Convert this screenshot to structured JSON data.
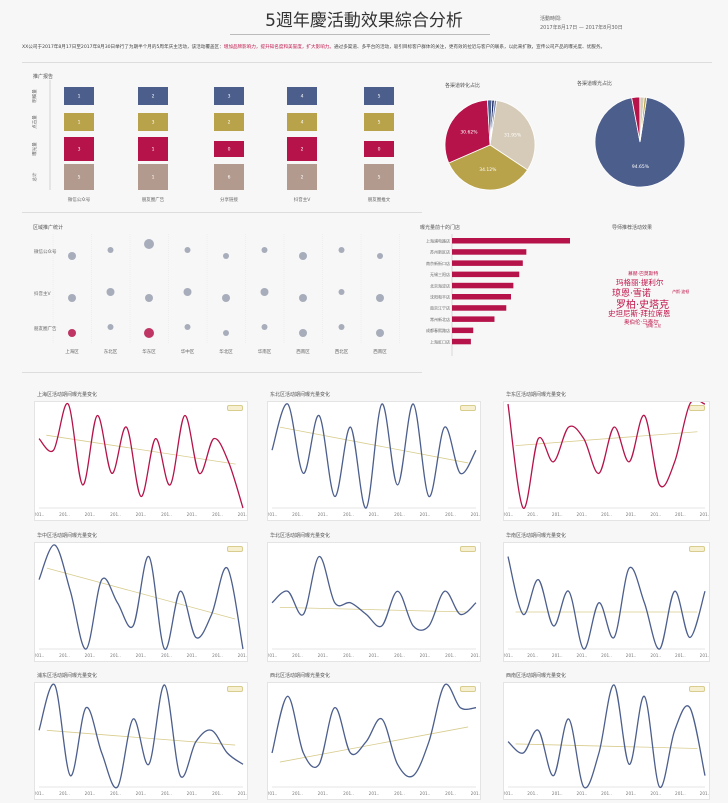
{
  "header": {
    "title": "5週年慶活動效果綜合分析",
    "time_label": "活動時間:",
    "time_range": "2017年8月17日 — 2017年8月30日",
    "intro_a": "XX公司于2017年8月17日至2017年8月30日举行了为期半个月的5周年庆主活动，该活动覆盖区：",
    "intro_hl": "增加品牌影响力，提升知名度和美誉度，扩大影响力。",
    "intro_b": "通过多渠道、多平台的活动，吸引目标客户群体的关注，更有效的拉近与客户的联系，以此来扩散，宣传公司产品的曝光度、优服务。"
  },
  "colors": {
    "blue": "#4c5e8c",
    "gold": "#b8a24a",
    "red": "#b5134a",
    "tan": "#b39a8e",
    "grey": "#9aa0b0",
    "trend": "#d8cc8e"
  },
  "promo": {
    "title": "推广报告",
    "rows": [
      "明细量",
      "点击量",
      "曝光量",
      "总计"
    ],
    "columns": [
      "微信公众号",
      "朋友圈广告",
      "分享链接",
      "抖音主V",
      "朋友圈推文"
    ],
    "chart_data": {
      "type": "bar",
      "categories": [
        "微信公众号",
        "朋友圈广告",
        "分享链接",
        "抖音主V",
        "朋友圈推文"
      ],
      "series": [
        {
          "name": "明细量",
          "values": [
            1,
            2,
            3,
            4,
            5
          ]
        },
        {
          "name": "点击量",
          "values": [
            1,
            3,
            2,
            4,
            5
          ]
        },
        {
          "name": "曝光量",
          "values": [
            3,
            1,
            0,
            2,
            0
          ]
        },
        {
          "name": "总计",
          "values": [
            5,
            1,
            6,
            2,
            5
          ]
        }
      ]
    }
  },
  "pie1": {
    "title": "各渠道转化占比",
    "chart_data": {
      "type": "pie",
      "labels": [
        "31.95%",
        "34.12%",
        "30.62%",
        "",
        "",
        ""
      ],
      "values": [
        31.95,
        34.12,
        30.62,
        1.6,
        0.9,
        0.81
      ]
    }
  },
  "pie2": {
    "title": "各渠道曝光占比",
    "chart_data": {
      "type": "pie",
      "labels": [
        "94.65%",
        "",
        "",
        ""
      ],
      "values": [
        94.65,
        2.9,
        1.6,
        0.85
      ]
    }
  },
  "region": {
    "title": "区域推广统计",
    "rows": [
      "微信公众号",
      "抖音主V",
      "朋友圈广告"
    ],
    "columns": [
      "上海区",
      "东北区",
      "华东区",
      "华中区",
      "华北区",
      "华南区",
      "西南区",
      "西北区",
      "西南区"
    ],
    "chart_data": {
      "type": "scatter",
      "points": [
        [
          0,
          0,
          3
        ],
        [
          1,
          0,
          2
        ],
        [
          2,
          0,
          4
        ],
        [
          3,
          0,
          2
        ],
        [
          4,
          0,
          2
        ],
        [
          5,
          0,
          2
        ],
        [
          6,
          0,
          3
        ],
        [
          7,
          0,
          2
        ],
        [
          8,
          0,
          2
        ],
        [
          0,
          1,
          3
        ],
        [
          1,
          1,
          3
        ],
        [
          2,
          1,
          3
        ],
        [
          3,
          1,
          3
        ],
        [
          4,
          1,
          3
        ],
        [
          5,
          1,
          3
        ],
        [
          6,
          1,
          3
        ],
        [
          7,
          1,
          2
        ],
        [
          8,
          1,
          3
        ],
        [
          0,
          2,
          3
        ],
        [
          1,
          2,
          2
        ],
        [
          2,
          2,
          4
        ],
        [
          3,
          2,
          2
        ],
        [
          4,
          2,
          2
        ],
        [
          5,
          2,
          2
        ],
        [
          6,
          2,
          3
        ],
        [
          7,
          2,
          2
        ],
        [
          8,
          2,
          3
        ]
      ],
      "highlight": [
        [
          0,
          2
        ],
        [
          2,
          2
        ]
      ]
    }
  },
  "stores": {
    "title": "曝光量前十的门店",
    "chart_data": {
      "type": "bar",
      "categories": [
        "上海浦电路店",
        "苏州新区店",
        "南京新街口店",
        "无锡三阳店",
        "北京海淀店",
        "沈阳和平店",
        "南京江宁店",
        "常州新北店",
        "成都春熙路店",
        "上海虹口店"
      ],
      "values": [
        100,
        63,
        60,
        57,
        52,
        50,
        46,
        36,
        18,
        16
      ]
    }
  },
  "cloud": {
    "title": "导师推荐活动效果",
    "words": [
      "慕赫·巴莫斯特",
      "玛格丽·提利尔",
      "琼恩·雪诺",
      "卢斯·波顿",
      "罗柏·史塔克",
      "史坦尼斯·拜拉席恩",
      "奥伯伦·马泰尔",
      "瑟曦·兰尼"
    ]
  },
  "trend_x": [
    "201..",
    "201..",
    "201..",
    "201..",
    "201..",
    "201..",
    "201..",
    "201..",
    "201.."
  ],
  "trends": [
    {
      "title": "上海区活动期间曝光量变化",
      "color": "red",
      "values": [
        6,
        5,
        9,
        2,
        8,
        3,
        7,
        1,
        6,
        2,
        8,
        3,
        6,
        4,
        0
      ],
      "trend": [
        6.3,
        3.8
      ]
    },
    {
      "title": "东北区活动期间曝光量变化",
      "color": "blue",
      "values": [
        5,
        9,
        3,
        8,
        1,
        7,
        0,
        9,
        2,
        9,
        1,
        7,
        3,
        5
      ],
      "trend": [
        7.0,
        3.9
      ]
    },
    {
      "title": "华东区活动期间曝光量变化",
      "color": "red",
      "values": [
        9,
        0,
        6,
        4,
        7,
        6,
        3,
        7,
        4,
        8,
        2,
        4,
        9,
        9
      ],
      "trend": [
        5.4,
        6.6
      ]
    },
    {
      "title": "华中区活动期间曝光量变化",
      "color": "blue",
      "values": [
        6,
        9,
        5,
        0,
        6,
        4,
        2,
        8,
        0,
        5,
        1,
        3,
        7,
        0
      ],
      "trend": [
        7.0,
        2.6
      ]
    },
    {
      "title": "华北区活动期间曝光量变化",
      "color": "blue",
      "values": [
        4,
        5,
        3,
        8,
        4,
        4,
        3,
        2,
        5,
        2,
        2,
        5,
        3,
        4
      ],
      "trend": [
        3.6,
        3.2
      ]
    },
    {
      "title": "华南区活动期间曝光量变化",
      "color": "blue",
      "values": [
        8,
        3,
        6,
        2,
        5,
        0,
        4,
        1,
        7,
        4,
        0,
        5,
        1,
        5
      ],
      "trend": [
        3.2,
        3.2
      ]
    },
    {
      "title": "浦东区活动期间曝光量变化",
      "color": "blue",
      "values": [
        5,
        9,
        1,
        7,
        3,
        0,
        6,
        2,
        9,
        1,
        4,
        5,
        3,
        2
      ],
      "trend": [
        5.0,
        3.7
      ]
    },
    {
      "title": "西北区活动期间曝光量变化",
      "color": "blue",
      "values": [
        3,
        8,
        3,
        2,
        7,
        3,
        4,
        6,
        2,
        1,
        4,
        9,
        7,
        7
      ],
      "trend": [
        2.2,
        5.3
      ]
    },
    {
      "title": "西南区活动期间曝光量变化",
      "color": "blue",
      "values": [
        4,
        3,
        5,
        1,
        6,
        0,
        3,
        9,
        2,
        8,
        0,
        5,
        7,
        1
      ],
      "trend": [
        3.8,
        3.4
      ]
    }
  ]
}
